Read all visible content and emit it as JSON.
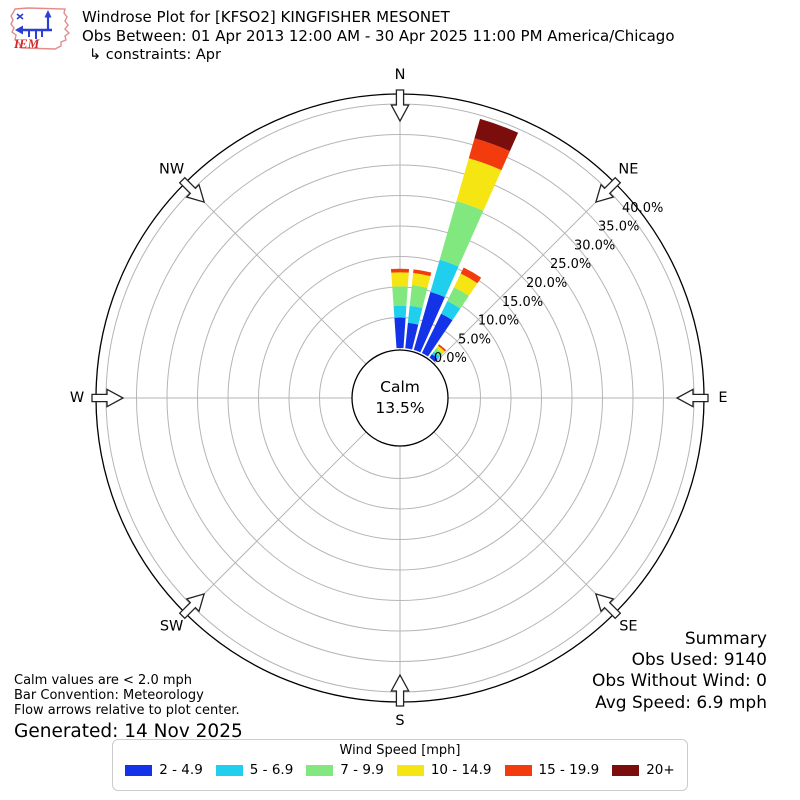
{
  "header": {
    "logo_text": "IEM",
    "title": "Windrose Plot for [KFSO2] KINGFISHER MESONET",
    "subtitle": "Obs Between: 01 Apr 2013 12:00 AM - 30 Apr 2025 11:00 PM America/Chicago",
    "constraints": "↳ constraints: Apr"
  },
  "chart_data": {
    "type": "windrose",
    "title": "Windrose Plot for [KFSO2] KINGFISHER MESONET",
    "calm_label": "Calm",
    "calm_value": "13.5%",
    "calm_pct": 13.5,
    "direction_bin_deg": 10,
    "petal_width_deg": 8,
    "ring_ticks": [
      {
        "pct": 0,
        "label": "0.0%"
      },
      {
        "pct": 5,
        "label": "5.0%"
      },
      {
        "pct": 10,
        "label": "10.0%"
      },
      {
        "pct": 15,
        "label": "15.0%"
      },
      {
        "pct": 20,
        "label": "20.0%"
      },
      {
        "pct": 25,
        "label": "25.0%"
      },
      {
        "pct": 30,
        "label": "30.0%"
      },
      {
        "pct": 35,
        "label": "35.0%"
      },
      {
        "pct": 40,
        "label": "40.0%"
      }
    ],
    "compass_labels": [
      "N",
      "NE",
      "E",
      "SE",
      "S",
      "SW",
      "W",
      "NW"
    ],
    "speed_bins": [
      {
        "label": "2 - 4.9",
        "color": "#1433e8"
      },
      {
        "label": "5 - 6.9",
        "color": "#20cfee"
      },
      {
        "label": "7 - 9.9",
        "color": "#80e87e"
      },
      {
        "label": "10 - 14.9",
        "color": "#f5e513"
      },
      {
        "label": "15 - 19.9",
        "color": "#f23c0d"
      },
      {
        "label": "20+",
        "color": "#7c0d0d"
      }
    ],
    "petals": [
      {
        "dir_deg": 0,
        "values": [
          5.0,
          1.9,
          3.2,
          2.3,
          0.6,
          0.0
        ]
      },
      {
        "dir_deg": 10,
        "values": [
          4.2,
          2.8,
          3.4,
          2.0,
          0.6,
          0.0
        ]
      },
      {
        "dir_deg": 20,
        "values": [
          9.9,
          5.5,
          10.0,
          7.3,
          3.4,
          3.3
        ]
      },
      {
        "dir_deg": 30,
        "values": [
          7.2,
          2.3,
          2.5,
          2.5,
          1.1,
          0.0
        ]
      },
      {
        "dir_deg": 40,
        "values": [
          0.7,
          0.5,
          0.7,
          0.5,
          0.3,
          0.0
        ]
      }
    ]
  },
  "summary": {
    "title": "Summary",
    "lines": [
      "Obs Used: 9140",
      "Obs Without Wind: 0",
      "Avg Speed: 6.9 mph"
    ]
  },
  "notes": {
    "lines": [
      "Calm values are < 2.0 mph",
      "Bar Convention: Meteorology",
      "Flow arrows relative to plot center."
    ],
    "generated": "Generated: 14 Nov 2025"
  },
  "legend": {
    "title": "Wind Speed [mph]"
  }
}
